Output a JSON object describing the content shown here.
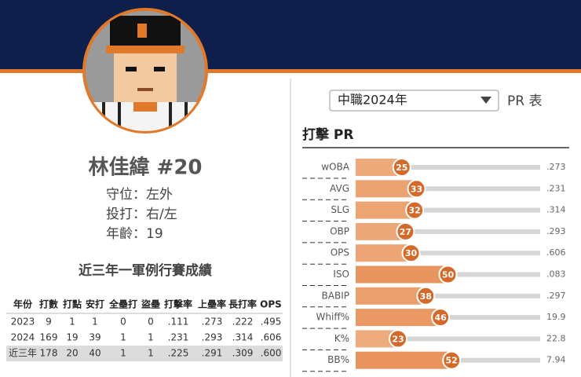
{
  "header": {
    "name": "林佳緯 #20",
    "position": "守位：左外",
    "bats_throws": "投打：右/左",
    "age": "年齡：19"
  },
  "stats_table": {
    "title": "近三年一軍例行賽成績",
    "columns": [
      "年份",
      "打數",
      "打點",
      "安打",
      "全壘打",
      "盜壘",
      "打擊率",
      "上壘率",
      "長打率",
      "OPS"
    ],
    "rows": [
      [
        "2023",
        "9",
        "1",
        "1",
        "0",
        "0",
        ".111",
        ".273",
        ".222",
        ".495"
      ],
      [
        "2024",
        "169",
        "19",
        "39",
        "1",
        "1",
        ".231",
        ".293",
        ".314",
        ".606"
      ],
      [
        "近三年",
        "178",
        "20",
        "40",
        "1",
        "1",
        ".225",
        ".291",
        ".309",
        ".600"
      ]
    ]
  },
  "pr_panel": {
    "season_select": "中職2024年",
    "title": "PR 表",
    "section": "打擊 PR",
    "items": [
      {
        "label": "wOBA",
        "pr": 25,
        "value": ".273"
      },
      {
        "label": "AVG",
        "pr": 33,
        "value": ".231"
      },
      {
        "label": "SLG",
        "pr": 32,
        "value": ".314"
      },
      {
        "label": "OBP",
        "pr": 27,
        "value": ".293"
      },
      {
        "label": "OPS",
        "pr": 30,
        "value": ".606"
      },
      {
        "label": "ISO",
        "pr": 50,
        "value": ".083"
      },
      {
        "label": "BABIP",
        "pr": 38,
        "value": ".297"
      },
      {
        "label": "Whiff%",
        "pr": 46,
        "value": "19.9"
      },
      {
        "label": "K%",
        "pr": 23,
        "value": "22.8"
      },
      {
        "label": "BB%",
        "pr": 52,
        "value": "7.94"
      }
    ]
  }
}
